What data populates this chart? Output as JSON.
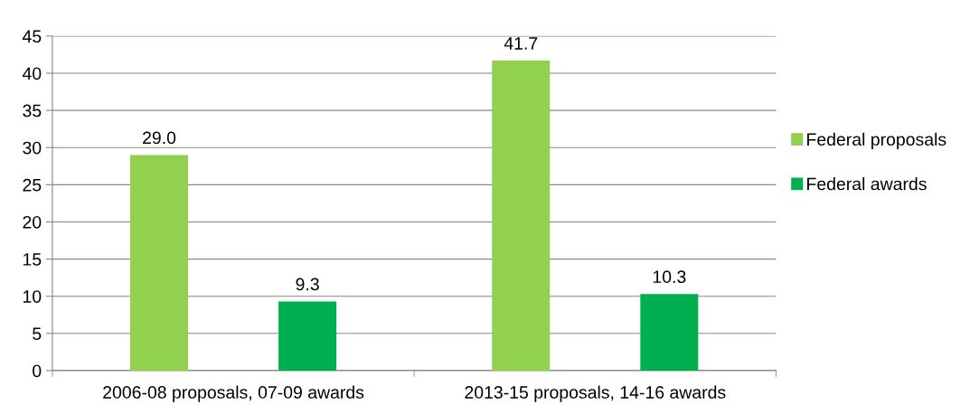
{
  "chart_data": {
    "type": "bar",
    "categories": [
      "2006-08 proposals, 07-09 awards",
      "2013-15 proposals, 14-16 awards"
    ],
    "series": [
      {
        "name": "Federal proposals",
        "color": "#92d050",
        "values": [
          29.0,
          41.7
        ],
        "value_labels": [
          "29.0",
          "41.7"
        ]
      },
      {
        "name": "Federal awards",
        "color": "#00b050",
        "values": [
          9.3,
          10.3
        ],
        "value_labels": [
          "9.3",
          "10.3"
        ]
      }
    ],
    "ylim": [
      0,
      45
    ],
    "yticks": [
      0,
      5,
      10,
      15,
      20,
      25,
      30,
      35,
      40,
      45
    ],
    "grid": "y",
    "legend": "right"
  }
}
